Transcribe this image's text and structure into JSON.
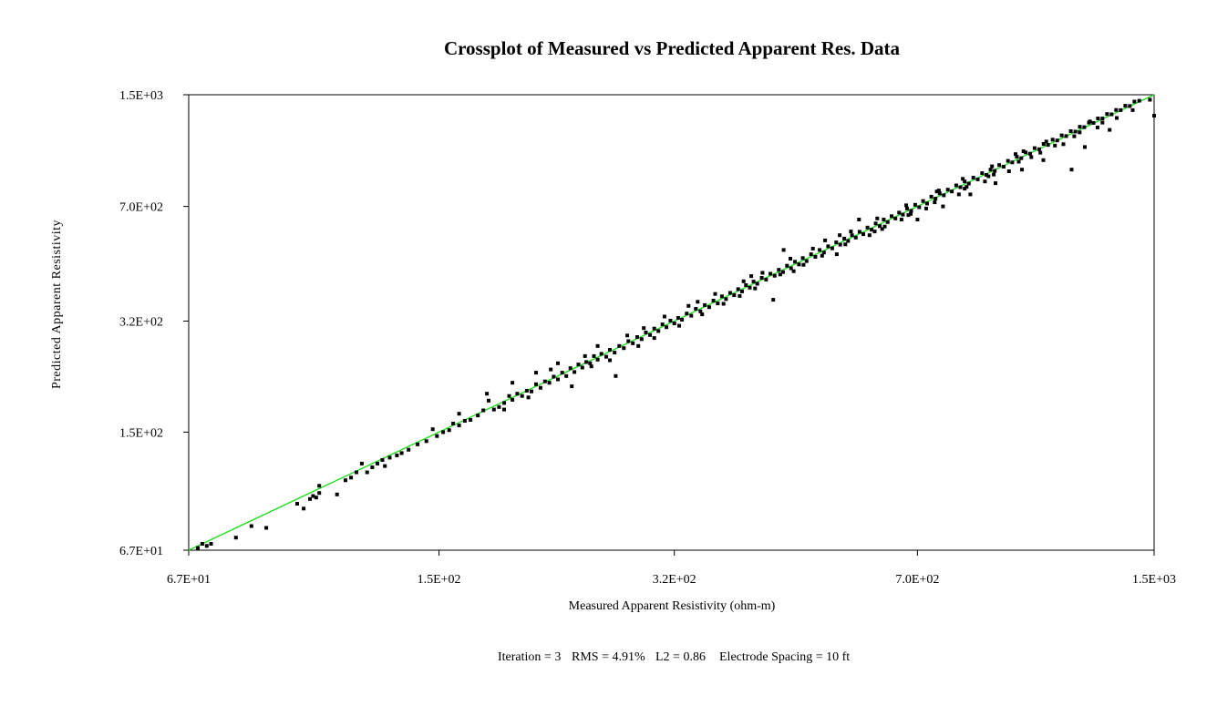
{
  "chart_data": {
    "type": "scatter",
    "title": "Crossplot of Measured vs Predicted Apparent Res. Data",
    "xlabel": "Measured Apparent Resistivity (ohm-m)",
    "ylabel": "Predicted Apparent Resistivity",
    "x_scale": "log",
    "y_scale": "log",
    "xlim": [
      67,
      1500
    ],
    "ylim": [
      67,
      1500
    ],
    "x_ticks": [
      {
        "value": 67,
        "label": "6.7E+01"
      },
      {
        "value": 150,
        "label": "1.5E+02"
      },
      {
        "value": 320,
        "label": "3.2E+02"
      },
      {
        "value": 700,
        "label": "7.0E+02"
      },
      {
        "value": 1500,
        "label": "1.5E+03"
      }
    ],
    "y_ticks": [
      {
        "value": 67,
        "label": "6.7E+01"
      },
      {
        "value": 150,
        "label": "1.5E+02"
      },
      {
        "value": 320,
        "label": "3.2E+02"
      },
      {
        "value": 700,
        "label": "7.0E+02"
      },
      {
        "value": 1500,
        "label": "1.5E+03"
      }
    ],
    "grid": false,
    "reference_line": {
      "from": [
        67,
        67
      ],
      "to": [
        1500,
        1500
      ],
      "color": "#22dd22"
    },
    "point_color": "#000000",
    "points": [
      [
        70,
        70
      ],
      [
        71,
        69
      ],
      [
        72,
        70
      ],
      [
        69,
        68
      ],
      [
        78,
        73
      ],
      [
        82,
        79
      ],
      [
        86,
        78
      ],
      [
        95,
        92
      ],
      [
        97,
        89
      ],
      [
        99,
        95
      ],
      [
        100,
        97
      ],
      [
        101,
        96
      ],
      [
        102,
        99
      ],
      [
        102,
        104
      ],
      [
        108,
        98
      ],
      [
        111,
        108
      ],
      [
        113,
        110
      ],
      [
        115,
        114
      ],
      [
        117,
        121
      ],
      [
        119,
        114
      ],
      [
        121,
        118
      ],
      [
        123,
        121
      ],
      [
        125,
        124
      ],
      [
        126,
        119
      ],
      [
        128,
        126
      ],
      [
        131,
        128
      ],
      [
        133,
        130
      ],
      [
        136,
        133
      ],
      [
        140,
        138
      ],
      [
        144,
        141
      ],
      [
        147,
        153
      ],
      [
        149,
        146
      ],
      [
        152,
        150
      ],
      [
        155,
        152
      ],
      [
        157,
        159
      ],
      [
        160,
        157
      ],
      [
        163,
        162
      ],
      [
        166,
        163
      ],
      [
        170,
        168
      ],
      [
        173,
        174
      ],
      [
        176,
        186
      ],
      [
        179,
        175
      ],
      [
        182,
        178
      ],
      [
        185,
        183
      ],
      [
        188,
        192
      ],
      [
        190,
        187
      ],
      [
        193,
        195
      ],
      [
        196,
        192
      ],
      [
        199,
        199
      ],
      [
        202,
        198
      ],
      [
        205,
        208
      ],
      [
        208,
        203
      ],
      [
        211,
        212
      ],
      [
        214,
        210
      ],
      [
        217,
        219
      ],
      [
        220,
        215
      ],
      [
        223,
        225
      ],
      [
        226,
        220
      ],
      [
        229,
        232
      ],
      [
        232,
        226
      ],
      [
        235,
        238
      ],
      [
        238,
        233
      ],
      [
        241,
        242
      ],
      [
        244,
        240
      ],
      [
        247,
        252
      ],
      [
        250,
        246
      ],
      [
        253,
        256
      ],
      [
        257,
        251
      ],
      [
        260,
        263
      ],
      [
        264,
        258
      ],
      [
        268,
        270
      ],
      [
        272,
        266
      ],
      [
        276,
        279
      ],
      [
        280,
        275
      ],
      [
        284,
        287
      ],
      [
        288,
        283
      ],
      [
        292,
        296
      ],
      [
        296,
        291
      ],
      [
        300,
        304
      ],
      [
        304,
        299
      ],
      [
        308,
        313
      ],
      [
        312,
        307
      ],
      [
        316,
        321
      ],
      [
        320,
        315
      ],
      [
        324,
        327
      ],
      [
        328,
        323
      ],
      [
        333,
        337
      ],
      [
        338,
        332
      ],
      [
        343,
        348
      ],
      [
        348,
        342
      ],
      [
        353,
        357
      ],
      [
        358,
        352
      ],
      [
        363,
        368
      ],
      [
        368,
        361
      ],
      [
        373,
        379
      ],
      [
        378,
        372
      ],
      [
        383,
        388
      ],
      [
        388,
        382
      ],
      [
        393,
        398
      ],
      [
        398,
        392
      ],
      [
        403,
        409
      ],
      [
        408,
        402
      ],
      [
        413,
        419
      ],
      [
        418,
        413
      ],
      [
        424,
        430
      ],
      [
        430,
        425
      ],
      [
        436,
        442
      ],
      [
        442,
        436
      ],
      [
        448,
        454
      ],
      [
        454,
        447
      ],
      [
        460,
        467
      ],
      [
        466,
        459
      ],
      [
        472,
        480
      ],
      [
        478,
        471
      ],
      [
        484,
        492
      ],
      [
        490,
        482
      ],
      [
        497,
        505
      ],
      [
        504,
        496
      ],
      [
        511,
        520
      ],
      [
        518,
        511
      ],
      [
        525,
        533
      ],
      [
        532,
        526
      ],
      [
        539,
        548
      ],
      [
        546,
        539
      ],
      [
        553,
        562
      ],
      [
        560,
        553
      ],
      [
        567,
        575
      ],
      [
        574,
        566
      ],
      [
        581,
        589
      ],
      [
        588,
        579
      ],
      [
        596,
        606
      ],
      [
        604,
        597
      ],
      [
        612,
        623
      ],
      [
        620,
        612
      ],
      [
        628,
        640
      ],
      [
        636,
        629
      ],
      [
        644,
        655
      ],
      [
        652,
        645
      ],
      [
        660,
        671
      ],
      [
        668,
        662
      ],
      [
        677,
        690
      ],
      [
        686,
        679
      ],
      [
        695,
        708
      ],
      [
        704,
        696
      ],
      [
        713,
        726
      ],
      [
        722,
        714
      ],
      [
        732,
        748
      ],
      [
        742,
        738
      ],
      [
        752,
        765
      ],
      [
        762,
        755
      ],
      [
        772,
        785
      ],
      [
        782,
        775
      ],
      [
        793,
        808
      ],
      [
        804,
        798
      ],
      [
        815,
        830
      ],
      [
        826,
        818
      ],
      [
        838,
        852
      ],
      [
        850,
        842
      ],
      [
        862,
        878
      ],
      [
        874,
        868
      ],
      [
        886,
        900
      ],
      [
        898,
        892
      ],
      [
        911,
        928
      ],
      [
        924,
        918
      ],
      [
        937,
        955
      ],
      [
        950,
        945
      ],
      [
        964,
        983
      ],
      [
        978,
        973
      ],
      [
        992,
        1012
      ],
      [
        1006,
        1003
      ],
      [
        1021,
        1042
      ],
      [
        1036,
        1034
      ],
      [
        1051,
        1072
      ],
      [
        1066,
        1065
      ],
      [
        1082,
        1104
      ],
      [
        1098,
        1098
      ],
      [
        1114,
        1137
      ],
      [
        1130,
        1131
      ],
      [
        1147,
        1170
      ],
      [
        1164,
        1166
      ],
      [
        1181,
        1205
      ],
      [
        1198,
        1202
      ],
      [
        1216,
        1240
      ],
      [
        1234,
        1238
      ],
      [
        1252,
        1276
      ],
      [
        1270,
        1275
      ],
      [
        1289,
        1315
      ],
      [
        1308,
        1312
      ],
      [
        1327,
        1352
      ],
      [
        1347,
        1350
      ],
      [
        1367,
        1391
      ],
      [
        1387,
        1389
      ],
      [
        1408,
        1432
      ],
      [
        1430,
        1440
      ],
      [
        1480,
        1450
      ],
      [
        1500,
        1300
      ],
      [
        230,
        205
      ],
      [
        265,
        220
      ],
      [
        310,
        330
      ],
      [
        395,
        380
      ],
      [
        440,
        370
      ],
      [
        455,
        520
      ],
      [
        520,
        555
      ],
      [
        580,
        640
      ],
      [
        630,
        610
      ],
      [
        700,
        640
      ],
      [
        760,
        700
      ],
      [
        830,
        760
      ],
      [
        900,
        820
      ],
      [
        980,
        900
      ],
      [
        1050,
        960
      ],
      [
        1200,
        1050
      ],
      [
        1300,
        1180
      ],
      [
        1150,
        900
      ],
      [
        190,
        210
      ],
      [
        175,
        195
      ],
      [
        205,
        225
      ],
      [
        250,
        270
      ],
      [
        285,
        270
      ],
      [
        345,
        365
      ],
      [
        410,
        435
      ],
      [
        470,
        450
      ],
      [
        540,
        505
      ],
      [
        600,
        575
      ],
      [
        665,
        640
      ],
      [
        720,
        690
      ],
      [
        800,
        760
      ],
      [
        870,
        830
      ],
      [
        940,
        890
      ],
      [
        1010,
        980
      ],
      [
        1120,
        1070
      ],
      [
        1250,
        1200
      ],
      [
        160,
        170
      ],
      [
        185,
        175
      ],
      [
        220,
        240
      ],
      [
        260,
        245
      ],
      [
        300,
        285
      ],
      [
        335,
        355
      ],
      [
        375,
        360
      ],
      [
        425,
        445
      ],
      [
        485,
        470
      ],
      [
        545,
        575
      ],
      [
        610,
        590
      ],
      [
        675,
        705
      ],
      [
        740,
        720
      ],
      [
        810,
        845
      ],
      [
        880,
        860
      ],
      [
        960,
        1000
      ],
      [
        1040,
        1010
      ],
      [
        1180,
        1160
      ],
      [
        215,
        230
      ],
      [
        245,
        235
      ],
      [
        275,
        290
      ],
      [
        325,
        310
      ],
      [
        365,
        385
      ],
      [
        415,
        400
      ],
      [
        465,
        490
      ],
      [
        515,
        500
      ],
      [
        565,
        590
      ],
      [
        625,
        600
      ],
      [
        685,
        665
      ],
      [
        750,
        780
      ],
      [
        820,
        800
      ],
      [
        890,
        920
      ],
      [
        970,
        950
      ],
      [
        1060,
        1090
      ],
      [
        1160,
        1130
      ],
      [
        1270,
        1240
      ],
      [
        200,
        190
      ],
      [
        240,
        252
      ],
      [
        290,
        305
      ],
      [
        350,
        335
      ],
      [
        400,
        420
      ],
      [
        450,
        440
      ],
      [
        500,
        525
      ],
      [
        555,
        540
      ],
      [
        615,
        645
      ],
      [
        680,
        660
      ],
      [
        745,
        775
      ],
      [
        815,
        790
      ],
      [
        895,
        870
      ],
      [
        985,
        1020
      ],
      [
        1090,
        1060
      ],
      [
        1220,
        1250
      ],
      [
        1330,
        1280
      ],
      [
        1400,
        1350
      ]
    ]
  },
  "stats": {
    "iteration": "Iteration = 3",
    "rms": "RMS = 4.91%",
    "l2": "L2 = 0.86",
    "spacing": "Electrode Spacing = 10 ft"
  }
}
